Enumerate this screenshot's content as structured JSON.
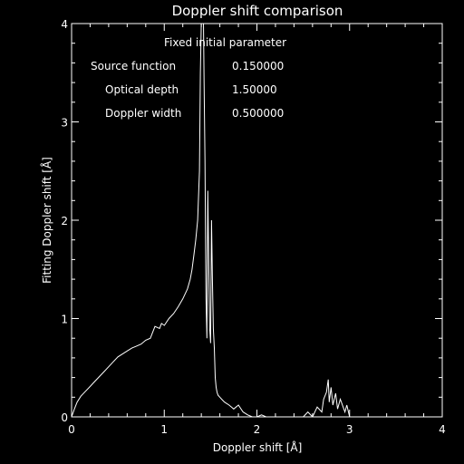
{
  "chart_data": {
    "type": "line",
    "title": "Doppler shift comparison",
    "xlabel": "Doppler shift [Å]",
    "ylabel": "Fitting Doppler shift [Å]",
    "xlim": [
      0,
      4
    ],
    "ylim": [
      0,
      4
    ],
    "grid": false,
    "x_ticks": [
      "0",
      "1",
      "2",
      "3",
      "4"
    ],
    "y_ticks": [
      "0",
      "1",
      "2",
      "3",
      "4"
    ],
    "annotation": {
      "heading": "Fixed initial parameter",
      "rows": [
        {
          "label": "Source function",
          "value": "0.150000"
        },
        {
          "label": "Optical depth",
          "value": "1.50000"
        },
        {
          "label": "Doppler width",
          "value": "0.500000"
        }
      ]
    },
    "series": [
      {
        "color": "#ffffff",
        "x": [
          0.0,
          0.03,
          0.06,
          0.1,
          0.15,
          0.2,
          0.25,
          0.3,
          0.35,
          0.4,
          0.45,
          0.5,
          0.55,
          0.6,
          0.65,
          0.7,
          0.75,
          0.8,
          0.85,
          0.9,
          0.95,
          0.97,
          1.0,
          1.05,
          1.1,
          1.15,
          1.2,
          1.25,
          1.28,
          1.3,
          1.32,
          1.34,
          1.36,
          1.38,
          1.39,
          1.4,
          1.41,
          1.42,
          1.43,
          1.44,
          1.45,
          1.46,
          1.47,
          1.48,
          1.49,
          1.5,
          1.51,
          1.52,
          1.53,
          1.54,
          1.55,
          1.56,
          1.57,
          1.58,
          1.6,
          1.62,
          1.65,
          1.7,
          1.75,
          1.8,
          1.85,
          1.9,
          1.95,
          2.0,
          2.05,
          2.1,
          2.2,
          2.3,
          2.4,
          2.5,
          2.55,
          2.6,
          2.65,
          2.7,
          2.72,
          2.75,
          2.77,
          2.78,
          2.8,
          2.82,
          2.85,
          2.87,
          2.9,
          2.93,
          2.95,
          2.97,
          3.0
        ],
        "y": [
          0.0,
          0.08,
          0.15,
          0.21,
          0.26,
          0.31,
          0.36,
          0.41,
          0.46,
          0.51,
          0.56,
          0.61,
          0.64,
          0.67,
          0.7,
          0.72,
          0.74,
          0.78,
          0.8,
          0.92,
          0.9,
          0.95,
          0.93,
          1.0,
          1.05,
          1.12,
          1.2,
          1.3,
          1.4,
          1.5,
          1.65,
          1.8,
          2.0,
          2.5,
          3.5,
          4.0,
          4.2,
          4.3,
          3.4,
          2.6,
          1.2,
          0.8,
          2.3,
          1.6,
          0.9,
          0.75,
          2.0,
          1.4,
          0.9,
          0.7,
          0.4,
          0.3,
          0.25,
          0.22,
          0.2,
          0.18,
          0.15,
          0.12,
          0.08,
          0.12,
          0.05,
          0.02,
          0.0,
          0.0,
          0.02,
          0.0,
          0.0,
          0.0,
          0.0,
          0.0,
          0.05,
          0.0,
          0.1,
          0.05,
          0.18,
          0.25,
          0.38,
          0.15,
          0.3,
          0.12,
          0.24,
          0.08,
          0.18,
          0.1,
          0.05,
          0.12,
          0.0
        ]
      }
    ]
  }
}
